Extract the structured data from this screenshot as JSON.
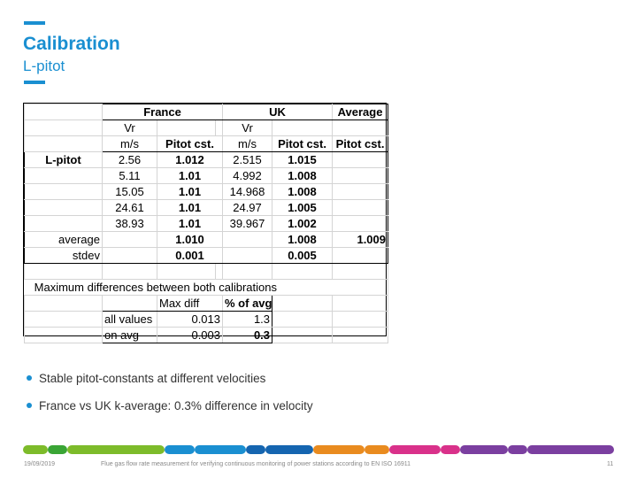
{
  "slide": {
    "title": "Calibration",
    "subtitle": "L-pitot",
    "accent_color": "#1a8fd1"
  },
  "table": {
    "header_country": [
      "France",
      "UK",
      "Average"
    ],
    "col_vr": "Vr",
    "col_ms": "m/s",
    "col_pitot": "Pitot cst.",
    "row_label": "L-pitot",
    "rows": [
      [
        "2.56",
        "1.012",
        "2.515",
        "1.015"
      ],
      [
        "5.11",
        "1.01",
        "4.992",
        "1.008"
      ],
      [
        "15.05",
        "1.01",
        "14.968",
        "1.008"
      ],
      [
        "24.61",
        "1.01",
        "24.97",
        "1.005"
      ],
      [
        "38.93",
        "1.01",
        "39.967",
        "1.002"
      ]
    ],
    "average_label": "average",
    "stdev_label": "stdev",
    "average": {
      "france": "1.010",
      "uk": "1.008",
      "overall": "1.009"
    },
    "stdev": {
      "france": "0.001",
      "uk": "0.005"
    },
    "maxdiff_title": "Maximum differences between both calibrations",
    "maxdiff_col1": "Max diff",
    "maxdiff_col2": "% of avg",
    "maxdiff_rows": [
      {
        "label": "all values",
        "max": "0.013",
        "pct": "1.3"
      },
      {
        "label": "on avg",
        "max": "0.003",
        "pct": "0.3"
      }
    ]
  },
  "bullets": [
    "Stable pitot-constants at different velocities",
    "France vs UK k-average: 0.3% difference in velocity"
  ],
  "footer": {
    "date": "19/09/2019",
    "caption": "Flue gas flow rate measurement for verifying continuous monitoring of power stations according to EN ISO 16911",
    "page": "11",
    "stripe_colors": [
      "#7dbb2a",
      "#3aa535",
      "#1a8fd1",
      "#1565b0",
      "#e98b1f",
      "#d9318a",
      "#7b3fa0"
    ]
  }
}
